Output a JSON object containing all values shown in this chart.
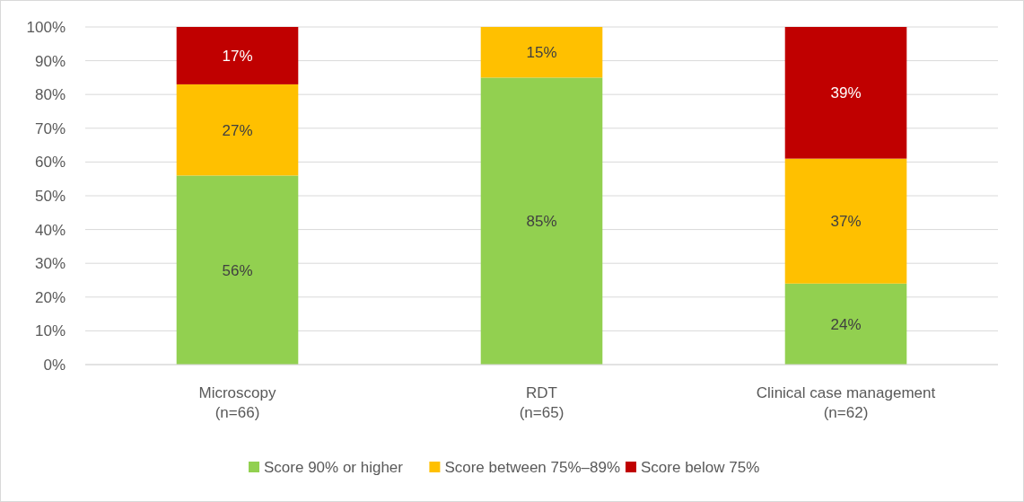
{
  "chart_data": {
    "type": "bar",
    "stacked": true,
    "categories": [
      "Microscopy\n(n=66)",
      "RDT\n(n=65)",
      "Clinical case management\n(n=62)"
    ],
    "series": [
      {
        "name": "Score 90% or higher",
        "color": "#92d050",
        "values": [
          56,
          85,
          24
        ],
        "value_labels": [
          "56%",
          "85%",
          "24%"
        ]
      },
      {
        "name": "Score between 75%–89%",
        "color": "#ffc000",
        "values": [
          27,
          15,
          37
        ],
        "value_labels": [
          "27%",
          "15%",
          "37%"
        ]
      },
      {
        "name": "Score below 75%",
        "color": "#c00000",
        "values": [
          17,
          null,
          39
        ],
        "value_labels": [
          "17%",
          null,
          "39%"
        ]
      }
    ],
    "ylim": [
      0,
      100
    ],
    "yticks": [
      {
        "value": 0,
        "label": "0%"
      },
      {
        "value": 10,
        "label": "10%"
      },
      {
        "value": 20,
        "label": "20%"
      },
      {
        "value": 30,
        "label": "30%"
      },
      {
        "value": 40,
        "label": "40%"
      },
      {
        "value": 50,
        "label": "50%"
      },
      {
        "value": 60,
        "label": "60%"
      },
      {
        "value": 70,
        "label": "70%"
      },
      {
        "value": 80,
        "label": "80%"
      },
      {
        "value": 90,
        "label": "90%"
      },
      {
        "value": 100,
        "label": "100%"
      }
    ],
    "grid": "y",
    "legend": "bottom"
  }
}
